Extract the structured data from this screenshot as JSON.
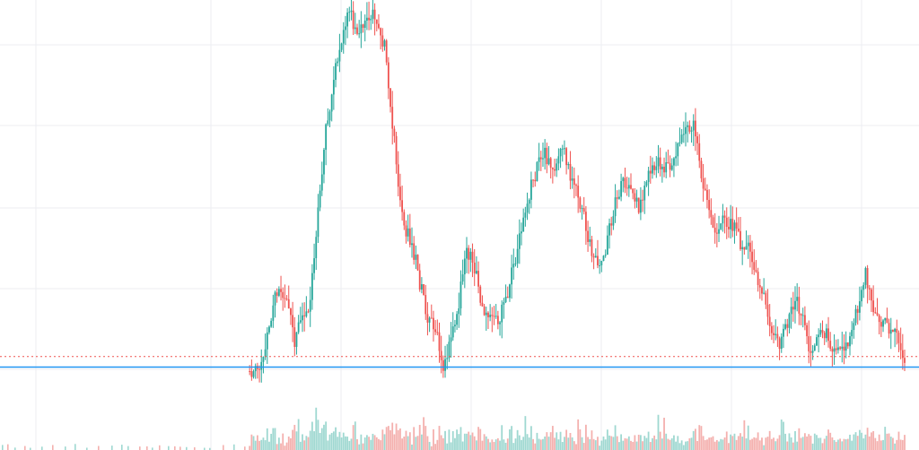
{
  "colors": {
    "background": "#ffffff",
    "grid": "#eceef2",
    "up": "#26a69a",
    "down": "#ef5350",
    "up_volume": "#9fd8d1",
    "down_volume": "#f4b0ae",
    "price_line_dotted": "#ef5350",
    "horizontal_line": "#2196f3"
  },
  "chart_data": {
    "type": "candlestick",
    "title": "",
    "xlabel": "",
    "ylabel": "",
    "grid": true,
    "legend": "none",
    "ylim": [
      0,
      100
    ],
    "volume_max": 100,
    "reference_lines": [
      {
        "kind": "dotted-last-price",
        "value": 11.6
      },
      {
        "kind": "horizontal-line",
        "value": 9.0
      }
    ],
    "path": [
      [
        0,
        8
      ],
      [
        4,
        8
      ],
      [
        8,
        12
      ],
      [
        12,
        22
      ],
      [
        16,
        30
      ],
      [
        20,
        25
      ],
      [
        24,
        16
      ],
      [
        28,
        22
      ],
      [
        32,
        25
      ],
      [
        36,
        48
      ],
      [
        40,
        68
      ],
      [
        44,
        80
      ],
      [
        48,
        90
      ],
      [
        52,
        98
      ],
      [
        55,
        92
      ],
      [
        60,
        95
      ],
      [
        66,
        96
      ],
      [
        70,
        88
      ],
      [
        74,
        70
      ],
      [
        78,
        50
      ],
      [
        80,
        44
      ],
      [
        84,
        40
      ],
      [
        88,
        30
      ],
      [
        92,
        22
      ],
      [
        96,
        18
      ],
      [
        100,
        10
      ],
      [
        104,
        15
      ],
      [
        108,
        25
      ],
      [
        112,
        38
      ],
      [
        116,
        34
      ],
      [
        120,
        23
      ],
      [
        124,
        21
      ],
      [
        128,
        20
      ],
      [
        132,
        25
      ],
      [
        136,
        34
      ],
      [
        140,
        44
      ],
      [
        144,
        52
      ],
      [
        148,
        58
      ],
      [
        152,
        62
      ],
      [
        156,
        57
      ],
      [
        160,
        65
      ],
      [
        164,
        58
      ],
      [
        168,
        52
      ],
      [
        172,
        46
      ],
      [
        176,
        38
      ],
      [
        180,
        33
      ],
      [
        184,
        40
      ],
      [
        188,
        51
      ],
      [
        192,
        54
      ],
      [
        196,
        52
      ],
      [
        200,
        48
      ],
      [
        204,
        56
      ],
      [
        208,
        58
      ],
      [
        212,
        60
      ],
      [
        216,
        57
      ],
      [
        220,
        63
      ],
      [
        224,
        68
      ],
      [
        228,
        70
      ],
      [
        232,
        57
      ],
      [
        236,
        48
      ],
      [
        240,
        42
      ],
      [
        244,
        46
      ],
      [
        248,
        44
      ],
      [
        252,
        40
      ],
      [
        256,
        38
      ],
      [
        260,
        32
      ],
      [
        264,
        28
      ],
      [
        268,
        18
      ],
      [
        272,
        14
      ],
      [
        276,
        20
      ],
      [
        280,
        26
      ],
      [
        284,
        21
      ],
      [
        288,
        12
      ],
      [
        292,
        16
      ],
      [
        296,
        18
      ],
      [
        300,
        12
      ],
      [
        304,
        13
      ],
      [
        308,
        17
      ],
      [
        312,
        23
      ],
      [
        316,
        32
      ],
      [
        320,
        21
      ],
      [
        324,
        20
      ],
      [
        328,
        19
      ],
      [
        332,
        17
      ],
      [
        336,
        12
      ]
    ]
  }
}
